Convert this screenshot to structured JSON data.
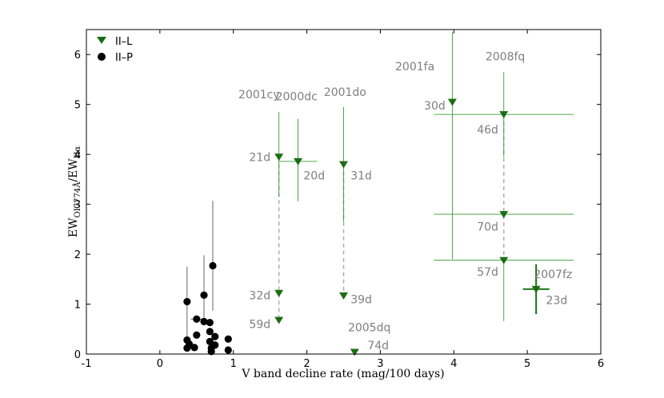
{
  "chart_data": {
    "type": "scatter",
    "xlabel": "V band decline rate (mag/100 days)",
    "ylabel_main": "EW",
    "ylabel_sub1": "OI7774Å",
    "ylabel_sep": "/EW",
    "ylabel_sub2": "Hα",
    "xlim": [
      -1,
      6
    ],
    "ylim": [
      0,
      6.5
    ],
    "xticks": [
      -1,
      0,
      1,
      2,
      3,
      4,
      5,
      6
    ],
    "yticks": [
      0,
      1,
      2,
      3,
      4,
      5,
      6
    ],
    "colors": {
      "iil": "#1a6e12",
      "iip": "#000000",
      "anno": "#7f7f7f",
      "dashed": "#b0b0b0",
      "errbar": "#3a9a3a"
    },
    "legend": [
      {
        "label": "II–L",
        "marker": "triangle-down",
        "color": "#1a6e12"
      },
      {
        "label": "II–P",
        "marker": "circle",
        "color": "#000000"
      }
    ],
    "series_iil": [
      {
        "x": 1.62,
        "y": 3.95,
        "yerr": [
          0.8,
          0.9
        ],
        "xerr": [
          0,
          0
        ],
        "epoch": "21d"
      },
      {
        "x": 1.62,
        "y": 1.22,
        "yerr": [
          0,
          0
        ],
        "xerr": [
          0,
          0
        ],
        "epoch": "32d"
      },
      {
        "x": 1.62,
        "y": 0.68,
        "yerr": [
          0,
          0
        ],
        "xerr": [
          0,
          0
        ],
        "epoch": "59d"
      },
      {
        "x": 1.88,
        "y": 3.86,
        "yerr": [
          0.8,
          0.85
        ],
        "xerr": [
          0.26,
          0.26
        ],
        "epoch": "20d"
      },
      {
        "x": 2.5,
        "y": 3.8,
        "yerr": [
          1.15,
          1.15
        ],
        "xerr": [
          0,
          0
        ],
        "epoch": "31d"
      },
      {
        "x": 2.5,
        "y": 1.17,
        "yerr": [
          0,
          0
        ],
        "xerr": [
          0,
          0
        ],
        "epoch": "39d"
      },
      {
        "x": 2.65,
        "y": 0.04,
        "yerr": [
          0,
          0
        ],
        "xerr": [
          0,
          0
        ],
        "epoch": "74d"
      },
      {
        "x": 3.98,
        "y": 5.05,
        "yerr": [
          3.15,
          1.4
        ],
        "xerr": [
          0,
          0
        ],
        "epoch": "30d"
      },
      {
        "x": 4.68,
        "y": 4.8,
        "yerr": [
          0.85,
          0.85
        ],
        "xerr": [
          0.95,
          0.95
        ],
        "epoch": "46d"
      },
      {
        "x": 4.68,
        "y": 2.8,
        "yerr": [
          0,
          0
        ],
        "xerr": [
          0.95,
          0.95
        ],
        "epoch": "70d"
      },
      {
        "x": 4.68,
        "y": 1.88,
        "yerr": [
          1.22,
          0
        ],
        "xerr": [
          0.95,
          0.95
        ],
        "epoch": "57d"
      },
      {
        "x": 5.12,
        "y": 1.3,
        "yerr": [
          0.5,
          0.5
        ],
        "xerr": [
          0.18,
          0.18
        ],
        "epoch": "23d",
        "bold": true
      }
    ],
    "dashed_links": [
      {
        "x": 1.62,
        "y1": 3.95,
        "y2": 0.68
      },
      {
        "x": 2.5,
        "y1": 3.8,
        "y2": 1.17
      },
      {
        "x": 4.68,
        "y1": 4.8,
        "y2": 1.88
      }
    ],
    "sn_labels": [
      {
        "text": "2001cy",
        "x": 1.35,
        "y": 5.12
      },
      {
        "text": "2000dc",
        "x": 1.86,
        "y": 5.08
      },
      {
        "text": "2001do",
        "x": 2.52,
        "y": 5.17
      },
      {
        "text": "2001fa",
        "x": 3.47,
        "y": 5.68
      },
      {
        "text": "2008fq",
        "x": 4.7,
        "y": 5.88
      },
      {
        "text": "2005dq",
        "x": 2.85,
        "y": 0.46
      },
      {
        "text": "2007fz",
        "x": 5.35,
        "y": 1.52
      }
    ],
    "epoch_labels": [
      {
        "text": "21d",
        "x": 1.36,
        "y": 3.95
      },
      {
        "text": "20d",
        "x": 2.1,
        "y": 3.58
      },
      {
        "text": "31d",
        "x": 2.74,
        "y": 3.58
      },
      {
        "text": "32d",
        "x": 1.36,
        "y": 1.18
      },
      {
        "text": "59d",
        "x": 1.36,
        "y": 0.6
      },
      {
        "text": "39d",
        "x": 2.74,
        "y": 1.1
      },
      {
        "text": "74d",
        "x": 2.97,
        "y": 0.18
      },
      {
        "text": "30d",
        "x": 3.74,
        "y": 4.98
      },
      {
        "text": "46d",
        "x": 4.46,
        "y": 4.5
      },
      {
        "text": "70d",
        "x": 4.46,
        "y": 2.55
      },
      {
        "text": "57d",
        "x": 4.46,
        "y": 1.65
      },
      {
        "text": "23d",
        "x": 5.4,
        "y": 1.08
      }
    ],
    "series_iip": [
      {
        "x": 0.37,
        "y": 1.05,
        "yerr": [
          0.8,
          0.7
        ],
        "xerr": [
          0,
          0
        ]
      },
      {
        "x": 0.37,
        "y": 0.28,
        "yerr": [
          0,
          0
        ],
        "xerr": [
          0,
          0
        ]
      },
      {
        "x": 0.37,
        "y": 0.12,
        "yerr": [
          0,
          0
        ],
        "xerr": [
          0,
          0
        ]
      },
      {
        "x": 0.4,
        "y": 0.2,
        "yerr": [
          0,
          0
        ],
        "xerr": [
          0,
          0
        ]
      },
      {
        "x": 0.47,
        "y": 0.13,
        "yerr": [
          0,
          0
        ],
        "xerr": [
          0,
          0
        ]
      },
      {
        "x": 0.5,
        "y": 0.38,
        "yerr": [
          0,
          0
        ],
        "xerr": [
          0,
          0
        ]
      },
      {
        "x": 0.5,
        "y": 0.7,
        "yerr": [
          0,
          0
        ],
        "xerr": [
          0.08,
          0.08
        ]
      },
      {
        "x": 0.6,
        "y": 1.18,
        "yerr": [
          0.45,
          0.8
        ],
        "xerr": [
          0,
          0
        ]
      },
      {
        "x": 0.6,
        "y": 0.65,
        "yerr": [
          0,
          0
        ],
        "xerr": [
          0,
          0
        ]
      },
      {
        "x": 0.68,
        "y": 0.63,
        "yerr": [
          0,
          0
        ],
        "xerr": [
          0,
          0
        ]
      },
      {
        "x": 0.68,
        "y": 0.45,
        "yerr": [
          0,
          0
        ],
        "xerr": [
          0,
          0
        ]
      },
      {
        "x": 0.68,
        "y": 0.25,
        "yerr": [
          0,
          0
        ],
        "xerr": [
          0,
          0
        ]
      },
      {
        "x": 0.7,
        "y": 0.12,
        "yerr": [
          0,
          0
        ],
        "xerr": [
          0,
          0
        ]
      },
      {
        "x": 0.72,
        "y": 1.77,
        "yerr": [
          0.9,
          1.3
        ],
        "xerr": [
          0,
          0
        ]
      },
      {
        "x": 0.7,
        "y": 0.05,
        "yerr": [
          0,
          0
        ],
        "xerr": [
          0,
          0
        ]
      },
      {
        "x": 0.75,
        "y": 0.35,
        "yerr": [
          0,
          0
        ],
        "xerr": [
          0,
          0
        ]
      },
      {
        "x": 0.75,
        "y": 0.18,
        "yerr": [
          0,
          0
        ],
        "xerr": [
          0,
          0
        ]
      },
      {
        "x": 0.93,
        "y": 0.3,
        "yerr": [
          0,
          0
        ],
        "xerr": [
          0,
          0
        ]
      },
      {
        "x": 0.93,
        "y": 0.08,
        "yerr": [
          0,
          0
        ],
        "xerr": [
          0,
          0
        ]
      }
    ]
  }
}
